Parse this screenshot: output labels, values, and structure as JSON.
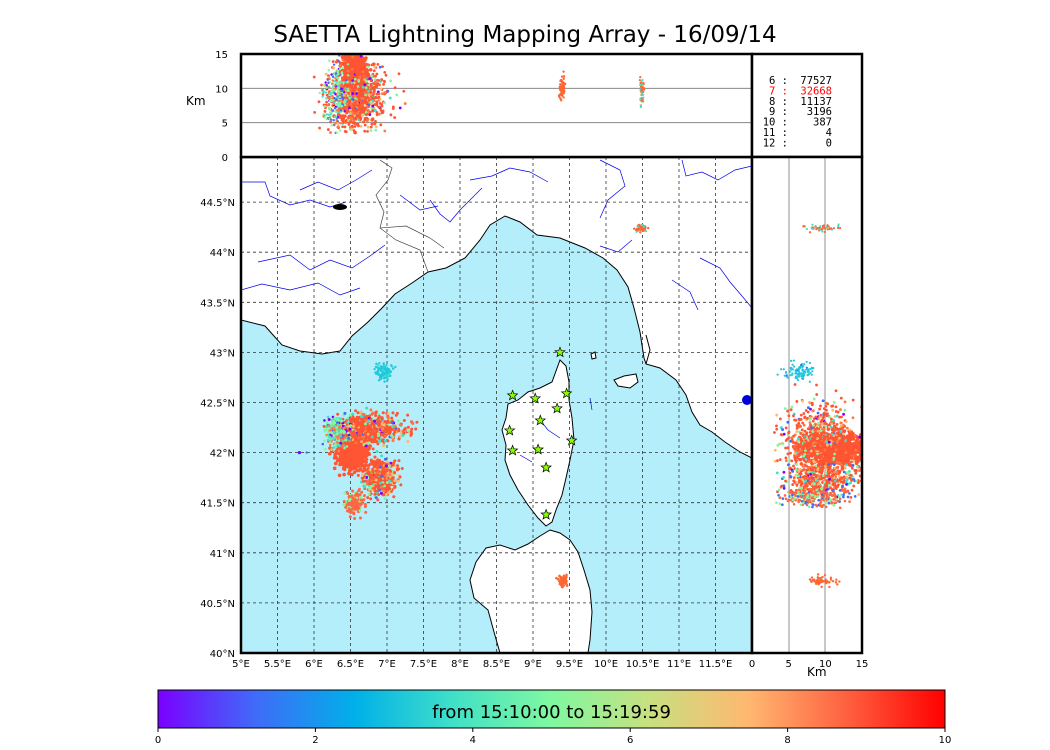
{
  "title": "SAETTA Lightning Mapping Array - 16/09/14",
  "chart_data": [
    {
      "type": "scatter",
      "panel": "map",
      "xlabels": [
        "5°E",
        "5.5°E",
        "6°E",
        "6.5°E",
        "7°E",
        "7.5°E",
        "8°E",
        "8.5°E",
        "9°E",
        "9.5°E",
        "10°E",
        "10.5°E",
        "11°E",
        "11.5°E"
      ],
      "ylabels": [
        "40°N",
        "40.5°N",
        "41°N",
        "41.5°N",
        "42°N",
        "42.5°N",
        "43°N",
        "43.5°N",
        "44°N",
        "44.5°N"
      ],
      "xlim": [
        5,
        12
      ],
      "ylim": [
        40,
        44.95
      ],
      "grid": true,
      "stations": [
        {
          "lon": 9.37,
          "lat": 43.0
        },
        {
          "lon": 8.72,
          "lat": 42.57
        },
        {
          "lon": 9.03,
          "lat": 42.54
        },
        {
          "lon": 9.46,
          "lat": 42.59
        },
        {
          "lon": 9.33,
          "lat": 42.44
        },
        {
          "lon": 9.1,
          "lat": 42.32
        },
        {
          "lon": 8.68,
          "lat": 42.22
        },
        {
          "lon": 9.53,
          "lat": 42.12
        },
        {
          "lon": 8.72,
          "lat": 42.02
        },
        {
          "lon": 9.07,
          "lat": 42.03
        },
        {
          "lon": 9.18,
          "lat": 41.85
        },
        {
          "lon": 9.18,
          "lat": 41.38
        }
      ],
      "lightning_clusters": [
        {
          "lon": 6.55,
          "lat": 42.05,
          "color": "#ff5533"
        },
        {
          "lon": 6.75,
          "lat": 42.25,
          "color": "#ff5533"
        },
        {
          "lon": 6.9,
          "lat": 41.75,
          "color": "#ff7744"
        },
        {
          "lon": 6.55,
          "lat": 41.5,
          "color": "#ff6644"
        },
        {
          "lon": 6.35,
          "lat": 42.2,
          "color": "#88eea0"
        },
        {
          "lon": 6.95,
          "lat": 42.8,
          "color": "#22c8dd"
        },
        {
          "lon": 9.4,
          "lat": 40.72,
          "color": "#ff6633"
        },
        {
          "lon": 10.5,
          "lat": 44.24,
          "color": "#ff6633"
        }
      ]
    },
    {
      "type": "scatter",
      "panel": "longitude-altitude",
      "ylabel": "Km",
      "yticks": [
        "0",
        "5",
        "10",
        "15"
      ],
      "ylim": [
        0,
        15
      ]
    },
    {
      "type": "scatter",
      "panel": "altitude-latitude",
      "xlabel": "Km",
      "xticks": [
        "0",
        "5",
        "10",
        "15"
      ],
      "xlim": [
        0,
        15
      ]
    }
  ],
  "station_counts": [
    {
      "label": "6 :",
      "count": "77527",
      "color": "#000000"
    },
    {
      "label": "7 :",
      "count": "32668",
      "color": "#ff0000"
    },
    {
      "label": "8 :",
      "count": "11137",
      "color": "#000000"
    },
    {
      "label": "9 :",
      "count": "3196",
      "color": "#000000"
    },
    {
      "label": "10 :",
      "count": "387",
      "color": "#000000"
    },
    {
      "label": "11 :",
      "count": "4",
      "color": "#000000"
    },
    {
      "label": "12 :",
      "count": "0",
      "color": "#000000"
    }
  ],
  "colorbar": {
    "label": "from 15:10:00 to 15:19:59",
    "ticks": [
      "0",
      "2",
      "4",
      "6",
      "8",
      "10"
    ],
    "range": [
      0,
      10
    ],
    "colors": [
      "#7a00ff",
      "#3f6cf8",
      "#00b0e8",
      "#40e0c8",
      "#80f8a0",
      "#c8e080",
      "#ffb870",
      "#ff6040",
      "#ff0000"
    ]
  },
  "colors": {
    "sea": "#b5eefb",
    "land": "#ffffff",
    "rivers": "#0000ee",
    "borders": "#444444",
    "station_fill": "#88ff00"
  }
}
